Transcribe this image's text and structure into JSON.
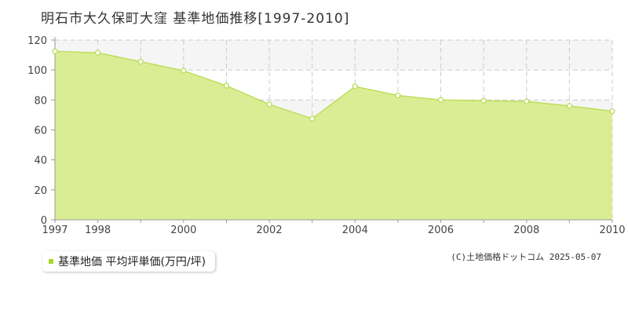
{
  "title": "明石市大久保町大窪  基準地価推移[1997-2010]",
  "legend_label": "基準地価 平均坪単価(万円/坪)",
  "copyright": "(C)土地価格ドットコム 2025-05-07",
  "colors": {
    "fill": "#dbed94",
    "line": "#bcde5b",
    "point_stroke": "#b9dc58",
    "grid": "#cccccc",
    "band": "#f5f5f5"
  },
  "chart_data": {
    "type": "area",
    "x": [
      1997,
      1998,
      1999,
      2000,
      2001,
      2002,
      2003,
      2004,
      2005,
      2006,
      2007,
      2008,
      2009,
      2010
    ],
    "values": [
      112.5,
      111.5,
      105.5,
      99.5,
      89.5,
      77,
      67.5,
      89,
      83,
      80,
      79.5,
      79,
      76,
      72.5
    ],
    "series": [
      {
        "name": "基準地価 平均坪単価(万円/坪)"
      }
    ],
    "x_ticks": [
      1997,
      1998,
      2000,
      2002,
      2004,
      2006,
      2008,
      2010
    ],
    "y_ticks": [
      0,
      20,
      40,
      60,
      80,
      100,
      120
    ],
    "xlim": [
      1997,
      2010
    ],
    "ylim": [
      0,
      120
    ],
    "grid": true,
    "legend_position": "bottom-left"
  }
}
